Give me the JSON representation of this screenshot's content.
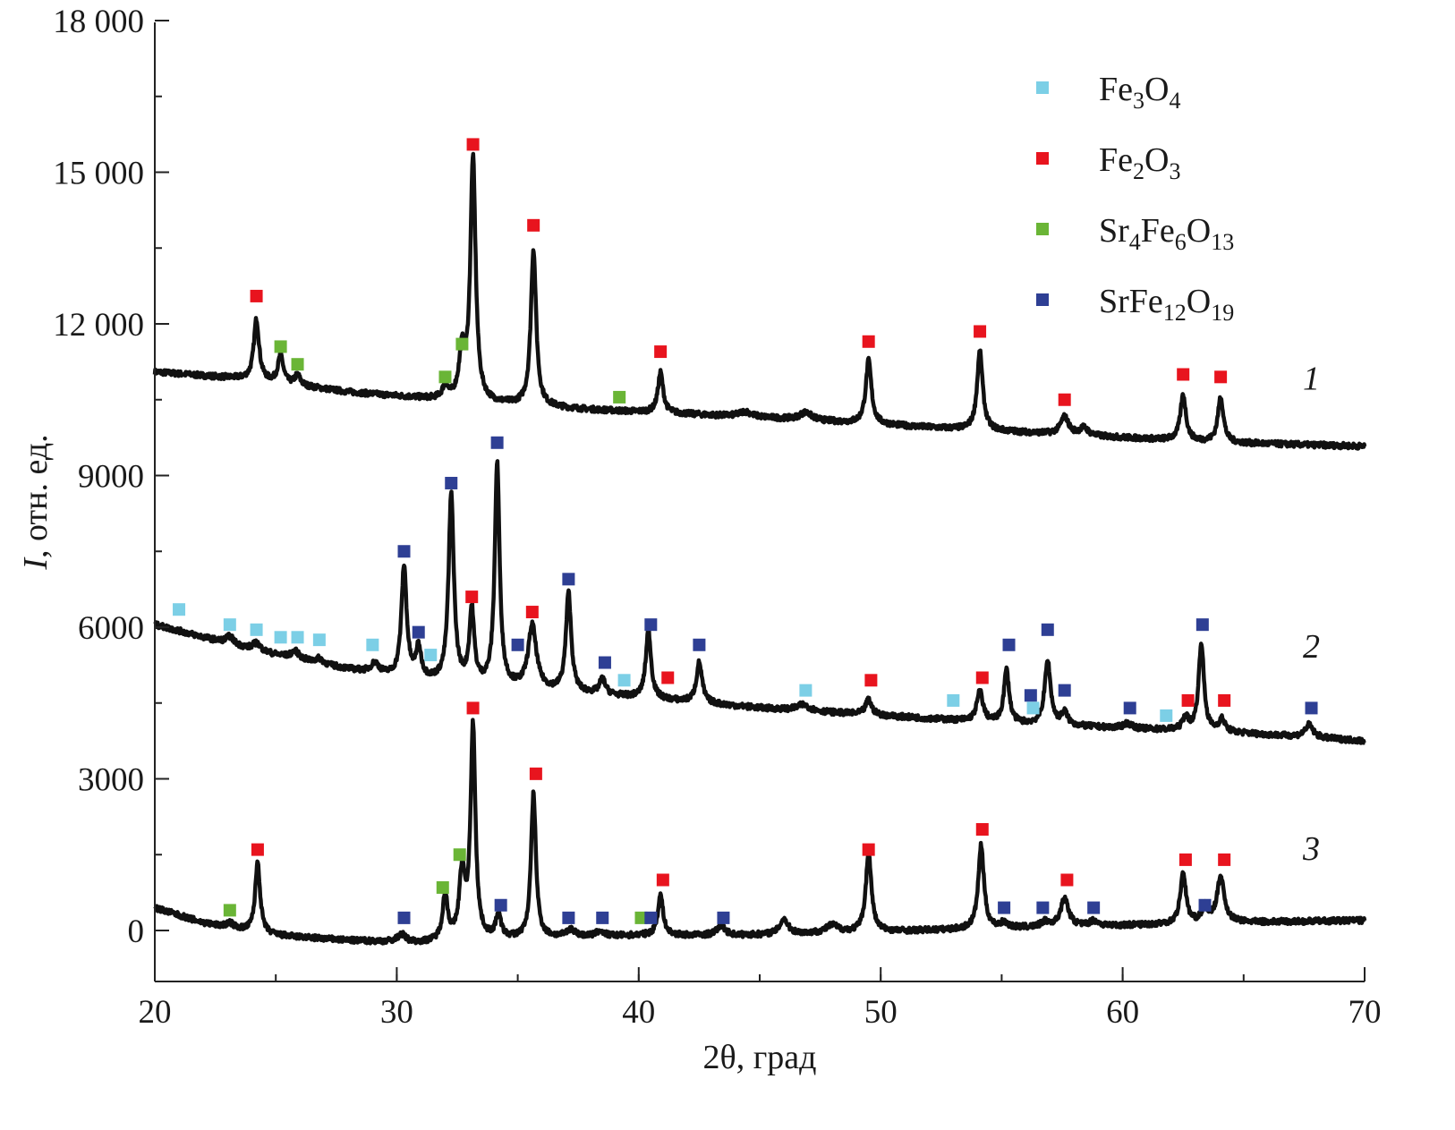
{
  "chart_data": {
    "type": "line",
    "xlabel": "2θ, град",
    "ylabel_italic": "I",
    "ylabel_rest": ", отн. ед.",
    "xlim": [
      20,
      70
    ],
    "ylim": [
      -1000,
      18000
    ],
    "x_ticks": [
      {
        "value": 20,
        "label": "20"
      },
      {
        "value": 30,
        "label": "30"
      },
      {
        "value": 40,
        "label": "40"
      },
      {
        "value": 50,
        "label": "50"
      },
      {
        "value": 60,
        "label": "60"
      },
      {
        "value": 70,
        "label": "70"
      }
    ],
    "y_ticks": [
      {
        "value": 0,
        "label": "0"
      },
      {
        "value": 3000,
        "label": "3000"
      },
      {
        "value": 6000,
        "label": "6000"
      },
      {
        "value": 9000,
        "label": "9000"
      },
      {
        "value": 12000,
        "label": "12 000"
      },
      {
        "value": 15000,
        "label": "15 000"
      },
      {
        "value": 18000,
        "label": "18 000"
      }
    ],
    "grid": false,
    "legend_position": "top-right",
    "phases": [
      {
        "key": "fe3o4",
        "parts": [
          {
            "t": "Fe",
            "s": false
          },
          {
            "t": "3",
            "s": true
          },
          {
            "t": "O",
            "s": false
          },
          {
            "t": "4",
            "s": true
          }
        ],
        "color": "#7ccfe6"
      },
      {
        "key": "fe2o3",
        "parts": [
          {
            "t": "Fe",
            "s": false
          },
          {
            "t": "2",
            "s": true
          },
          {
            "t": "O",
            "s": false
          },
          {
            "t": "3",
            "s": true
          }
        ],
        "color": "#e8141e"
      },
      {
        "key": "sr4fe6o13",
        "parts": [
          {
            "t": "Sr",
            "s": false
          },
          {
            "t": "4",
            "s": true
          },
          {
            "t": "Fe",
            "s": false
          },
          {
            "t": "6",
            "s": true
          },
          {
            "t": "O",
            "s": false
          },
          {
            "t": "13",
            "s": true
          }
        ],
        "color": "#6ab536"
      },
      {
        "key": "srfe12o19",
        "parts": [
          {
            "t": "SrFe",
            "s": false
          },
          {
            "t": "12",
            "s": true
          },
          {
            "t": "O",
            "s": false
          },
          {
            "t": "19",
            "s": true
          }
        ],
        "color": "#2e3f94"
      }
    ],
    "series": [
      {
        "label": "1",
        "label_pos": [
          67.8,
          10700
        ],
        "baseline": [
          [
            20,
            11050
          ],
          [
            24,
            10900
          ],
          [
            28,
            10650
          ],
          [
            33,
            10450
          ],
          [
            38,
            10300
          ],
          [
            45,
            10150
          ],
          [
            52,
            9950
          ],
          [
            58,
            9800
          ],
          [
            64,
            9650
          ],
          [
            70,
            9580
          ]
        ],
        "peaks": [
          [
            24.2,
            1200,
            0.13
          ],
          [
            25.2,
            550,
            0.13
          ],
          [
            25.9,
            200,
            0.13
          ],
          [
            32.0,
            250,
            0.13
          ],
          [
            32.7,
            900,
            0.15
          ],
          [
            33.15,
            4800,
            0.13
          ],
          [
            35.65,
            3100,
            0.13
          ],
          [
            40.9,
            800,
            0.13
          ],
          [
            44.4,
            100,
            0.3
          ],
          [
            46.9,
            150,
            0.3
          ],
          [
            49.5,
            1250,
            0.14
          ],
          [
            54.1,
            1550,
            0.14
          ],
          [
            57.6,
            350,
            0.2
          ],
          [
            58.4,
            150,
            0.2
          ],
          [
            62.5,
            900,
            0.14
          ],
          [
            64.05,
            900,
            0.14
          ]
        ],
        "markers": [
          {
            "phase": "fe2o3",
            "x": 24.2,
            "y": 12550
          },
          {
            "phase": "sr4fe6o13",
            "x": 25.2,
            "y": 11550
          },
          {
            "phase": "sr4fe6o13",
            "x": 25.9,
            "y": 11200
          },
          {
            "phase": "sr4fe6o13",
            "x": 32.0,
            "y": 10950
          },
          {
            "phase": "sr4fe6o13",
            "x": 32.7,
            "y": 11600
          },
          {
            "phase": "fe2o3",
            "x": 33.15,
            "y": 15550
          },
          {
            "phase": "fe2o3",
            "x": 35.65,
            "y": 13950
          },
          {
            "phase": "sr4fe6o13",
            "x": 39.2,
            "y": 10550
          },
          {
            "phase": "fe2o3",
            "x": 40.9,
            "y": 11450
          },
          {
            "phase": "fe2o3",
            "x": 49.5,
            "y": 11650
          },
          {
            "phase": "fe2o3",
            "x": 54.1,
            "y": 11850
          },
          {
            "phase": "fe2o3",
            "x": 57.6,
            "y": 10500
          },
          {
            "phase": "fe2o3",
            "x": 62.5,
            "y": 11000
          },
          {
            "phase": "fe2o3",
            "x": 64.05,
            "y": 10950
          }
        ]
      },
      {
        "label": "2",
        "label_pos": [
          67.8,
          5400
        ],
        "baseline": [
          [
            20,
            6050
          ],
          [
            22,
            5800
          ],
          [
            24,
            5550
          ],
          [
            27,
            5250
          ],
          [
            30,
            5000
          ],
          [
            33,
            4850
          ],
          [
            36,
            4750
          ],
          [
            40,
            4600
          ],
          [
            45,
            4400
          ],
          [
            50,
            4250
          ],
          [
            55,
            4100
          ],
          [
            60,
            4000
          ],
          [
            65,
            3900
          ],
          [
            70,
            3750
          ]
        ],
        "peaks": [
          [
            23.1,
            150,
            0.2
          ],
          [
            24.2,
            150,
            0.2
          ],
          [
            25.8,
            150,
            0.2
          ],
          [
            26.8,
            100,
            0.2
          ],
          [
            29.1,
            200,
            0.2
          ],
          [
            30.3,
            2200,
            0.13
          ],
          [
            30.9,
            600,
            0.13
          ],
          [
            32.25,
            3700,
            0.13
          ],
          [
            33.1,
            1450,
            0.12
          ],
          [
            34.15,
            4400,
            0.12
          ],
          [
            35.6,
            1250,
            0.2
          ],
          [
            37.1,
            1950,
            0.13
          ],
          [
            38.5,
            300,
            0.15
          ],
          [
            40.4,
            1350,
            0.13
          ],
          [
            42.5,
            800,
            0.14
          ],
          [
            46.8,
            120,
            0.3
          ],
          [
            49.5,
            300,
            0.15
          ],
          [
            54.1,
            600,
            0.15
          ],
          [
            55.2,
            1050,
            0.13
          ],
          [
            56.9,
            1250,
            0.15
          ],
          [
            57.6,
            250,
            0.15
          ],
          [
            60.2,
            100,
            0.2
          ],
          [
            62.6,
            250,
            0.15
          ],
          [
            63.25,
            1750,
            0.13
          ],
          [
            64.1,
            250,
            0.15
          ],
          [
            67.7,
            250,
            0.2
          ]
        ],
        "markers": [
          {
            "phase": "fe3o4",
            "x": 21.0,
            "y": 6350
          },
          {
            "phase": "fe3o4",
            "x": 23.1,
            "y": 6050
          },
          {
            "phase": "fe3o4",
            "x": 24.2,
            "y": 5950
          },
          {
            "phase": "fe3o4",
            "x": 25.2,
            "y": 5800
          },
          {
            "phase": "fe3o4",
            "x": 25.9,
            "y": 5800
          },
          {
            "phase": "fe3o4",
            "x": 26.8,
            "y": 5750
          },
          {
            "phase": "fe3o4",
            "x": 29.0,
            "y": 5650
          },
          {
            "phase": "srfe12o19",
            "x": 30.3,
            "y": 7500
          },
          {
            "phase": "srfe12o19",
            "x": 30.9,
            "y": 5900
          },
          {
            "phase": "fe3o4",
            "x": 31.4,
            "y": 5450
          },
          {
            "phase": "srfe12o19",
            "x": 32.25,
            "y": 8850
          },
          {
            "phase": "fe2o3",
            "x": 33.1,
            "y": 6600
          },
          {
            "phase": "srfe12o19",
            "x": 34.15,
            "y": 9650
          },
          {
            "phase": "srfe12o19",
            "x": 35.0,
            "y": 5650
          },
          {
            "phase": "fe2o3",
            "x": 35.6,
            "y": 6300
          },
          {
            "phase": "srfe12o19",
            "x": 37.1,
            "y": 6950
          },
          {
            "phase": "srfe12o19",
            "x": 38.6,
            "y": 5300
          },
          {
            "phase": "fe3o4",
            "x": 39.4,
            "y": 4950
          },
          {
            "phase": "srfe12o19",
            "x": 40.5,
            "y": 6050
          },
          {
            "phase": "fe2o3",
            "x": 41.2,
            "y": 5000
          },
          {
            "phase": "srfe12o19",
            "x": 42.5,
            "y": 5650
          },
          {
            "phase": "fe3o4",
            "x": 46.9,
            "y": 4750
          },
          {
            "phase": "fe2o3",
            "x": 49.6,
            "y": 4950
          },
          {
            "phase": "fe3o4",
            "x": 53.0,
            "y": 4550
          },
          {
            "phase": "fe2o3",
            "x": 54.2,
            "y": 5000
          },
          {
            "phase": "srfe12o19",
            "x": 55.3,
            "y": 5650
          },
          {
            "phase": "srfe12o19",
            "x": 56.2,
            "y": 4650
          },
          {
            "phase": "fe3o4",
            "x": 56.3,
            "y": 4400
          },
          {
            "phase": "srfe12o19",
            "x": 56.9,
            "y": 5950
          },
          {
            "phase": "srfe12o19",
            "x": 57.6,
            "y": 4750
          },
          {
            "phase": "srfe12o19",
            "x": 60.3,
            "y": 4400
          },
          {
            "phase": "fe3o4",
            "x": 61.8,
            "y": 4250
          },
          {
            "phase": "fe2o3",
            "x": 62.7,
            "y": 4550
          },
          {
            "phase": "srfe12o19",
            "x": 63.3,
            "y": 6050
          },
          {
            "phase": "fe2o3",
            "x": 64.2,
            "y": 4550
          },
          {
            "phase": "srfe12o19",
            "x": 67.8,
            "y": 4400
          }
        ]
      },
      {
        "label": "3",
        "label_pos": [
          67.8,
          1400
        ],
        "baseline": [
          [
            20,
            450
          ],
          [
            21,
            300
          ],
          [
            22,
            150
          ],
          [
            23,
            50
          ],
          [
            25,
            -100
          ],
          [
            28,
            -200
          ],
          [
            31,
            -250
          ],
          [
            33,
            -200
          ],
          [
            36,
            -150
          ],
          [
            40,
            -100
          ],
          [
            44,
            -100
          ],
          [
            48,
            -50
          ],
          [
            52,
            0
          ],
          [
            56,
            50
          ],
          [
            60,
            100
          ],
          [
            64,
            150
          ],
          [
            70,
            200
          ]
        ],
        "peaks": [
          [
            23.1,
            100,
            0.2
          ],
          [
            24.25,
            1400,
            0.12
          ],
          [
            30.2,
            150,
            0.2
          ],
          [
            32.0,
            900,
            0.13
          ],
          [
            32.7,
            1300,
            0.14
          ],
          [
            33.15,
            4200,
            0.12
          ],
          [
            34.2,
            450,
            0.13
          ],
          [
            35.65,
            2850,
            0.12
          ],
          [
            37.2,
            150,
            0.2
          ],
          [
            38.4,
            100,
            0.2
          ],
          [
            40.9,
            800,
            0.13
          ],
          [
            43.4,
            200,
            0.2
          ],
          [
            46.0,
            300,
            0.2
          ],
          [
            48.0,
            150,
            0.3
          ],
          [
            49.5,
            1550,
            0.14
          ],
          [
            54.15,
            1650,
            0.14
          ],
          [
            55.1,
            100,
            0.2
          ],
          [
            56.8,
            100,
            0.2
          ],
          [
            57.6,
            550,
            0.2
          ],
          [
            58.8,
            100,
            0.2
          ],
          [
            62.5,
            1000,
            0.14
          ],
          [
            63.4,
            300,
            0.15
          ],
          [
            64.05,
            900,
            0.18
          ]
        ],
        "markers": [
          {
            "phase": "sr4fe6o13",
            "x": 23.1,
            "y": 400
          },
          {
            "phase": "fe2o3",
            "x": 24.25,
            "y": 1600
          },
          {
            "phase": "srfe12o19",
            "x": 30.3,
            "y": 250
          },
          {
            "phase": "sr4fe6o13",
            "x": 31.9,
            "y": 850
          },
          {
            "phase": "sr4fe6o13",
            "x": 32.6,
            "y": 1500
          },
          {
            "phase": "fe2o3",
            "x": 33.15,
            "y": 4400
          },
          {
            "phase": "srfe12o19",
            "x": 34.3,
            "y": 500
          },
          {
            "phase": "fe2o3",
            "x": 35.75,
            "y": 3100
          },
          {
            "phase": "srfe12o19",
            "x": 37.1,
            "y": 250
          },
          {
            "phase": "srfe12o19",
            "x": 38.5,
            "y": 250
          },
          {
            "phase": "sr4fe6o13",
            "x": 40.1,
            "y": 250
          },
          {
            "phase": "srfe12o19",
            "x": 40.5,
            "y": 250
          },
          {
            "phase": "fe2o3",
            "x": 41.0,
            "y": 1000
          },
          {
            "phase": "srfe12o19",
            "x": 43.5,
            "y": 250
          },
          {
            "phase": "fe2o3",
            "x": 49.5,
            "y": 1600
          },
          {
            "phase": "fe2o3",
            "x": 54.2,
            "y": 2000
          },
          {
            "phase": "srfe12o19",
            "x": 55.1,
            "y": 450
          },
          {
            "phase": "srfe12o19",
            "x": 56.7,
            "y": 450
          },
          {
            "phase": "fe2o3",
            "x": 57.7,
            "y": 1000
          },
          {
            "phase": "srfe12o19",
            "x": 58.8,
            "y": 450
          },
          {
            "phase": "fe2o3",
            "x": 62.6,
            "y": 1400
          },
          {
            "phase": "srfe12o19",
            "x": 63.4,
            "y": 500
          },
          {
            "phase": "fe2o3",
            "x": 64.2,
            "y": 1400
          }
        ]
      }
    ]
  },
  "colors": {
    "line": "#111111",
    "axis": "#222222"
  }
}
